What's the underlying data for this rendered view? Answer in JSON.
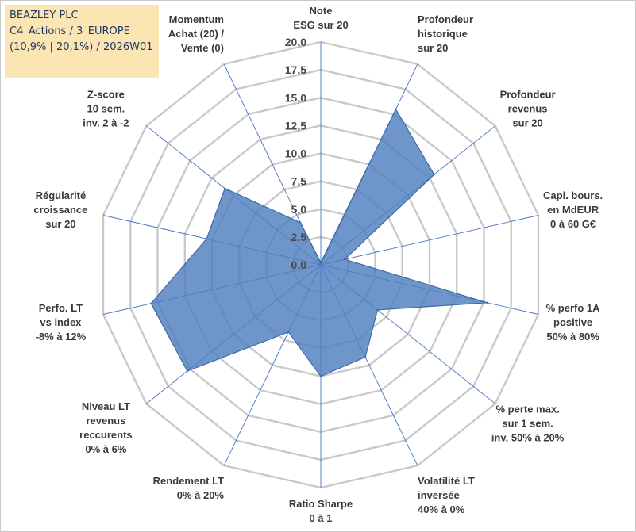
{
  "header": {
    "line1": "BEAZLEY PLC",
    "line2": "C4_Actions / 3_EUROPE",
    "line3": "(10,9% | 20,1%) / 2026W01"
  },
  "colors": {
    "grid": "#c9c9c9",
    "spoke": "#4472c4",
    "fill": "#4f7fbf",
    "stroke": "#3d6aa8",
    "tick_text": "#4a4a4a",
    "label_text": "#3a3a3a",
    "title_bg": "#fbe5b2"
  },
  "chart_data": {
    "type": "radar",
    "title": "BEAZLEY PLC",
    "rmin": 0,
    "rmax": 20,
    "tick_step": 2.5,
    "tick_labels": [
      "0,0",
      "2,5",
      "5,0",
      "7,5",
      "10,0",
      "12,5",
      "15,0",
      "17,5",
      "20,0"
    ],
    "axes": [
      {
        "label": [
          "Note",
          "ESG sur 20"
        ],
        "value": 0.2
      },
      {
        "label": [
          "Profondeur",
          "historique",
          "sur 20"
        ],
        "value": 15.5
      },
      {
        "label": [
          "Profondeur",
          "revenus",
          "sur 20"
        ],
        "value": 13.0
      },
      {
        "label": [
          "Capi. bours.",
          "en MdEUR",
          "0 à 60 G€"
        ],
        "value": 2.2
      },
      {
        "label": [
          "% perfo 1A",
          "positive",
          "50% à 80%"
        ],
        "value": 15.3
      },
      {
        "label": [
          "% perte max.",
          "sur 1 sem.",
          "inv. 50% à 20%"
        ],
        "value": 6.5
      },
      {
        "label": [
          "Volatilité LT",
          "inversée",
          "40% à 0%"
        ],
        "value": 9.2
      },
      {
        "label": [
          "Ratio Sharpe",
          "0 à 1"
        ],
        "value": 10.0
      },
      {
        "label": [
          "Rendement LT",
          "0% à 20%"
        ],
        "value": 6.7
      },
      {
        "label": [
          "Niveau LT",
          "revenus",
          "reccurents",
          "0% à 6%"
        ],
        "value": 15.3
      },
      {
        "label": [
          "Perfo. LT",
          "vs index",
          "-8% à 12%"
        ],
        "value": 15.6
      },
      {
        "label": [
          "Régularité",
          "croissance",
          "sur 20"
        ],
        "value": 10.5
      },
      {
        "label": [
          "Z-score",
          "10 sem.",
          "inv. 2 à -2"
        ],
        "value": 11.0
      },
      {
        "label": [
          "Momentum",
          "Achat (20) /",
          "Vente (0)"
        ],
        "value": 4.2
      }
    ]
  }
}
